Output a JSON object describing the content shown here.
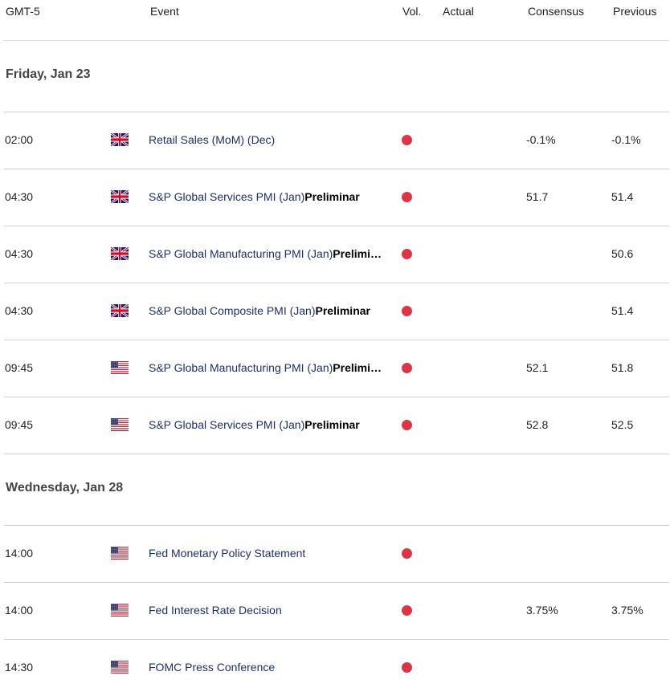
{
  "header": {
    "timezone": "GMT-5",
    "event": "Event",
    "vol": "Vol.",
    "actual": "Actual",
    "consensus": "Consensus",
    "previous": "Previous"
  },
  "colors": {
    "high_volatility": "#dc3545",
    "event_text": "#1e2f6b"
  },
  "sections": [
    {
      "date": "Friday, Jan 23",
      "rows": [
        {
          "time": "02:00",
          "flag": "uk-flag-icon",
          "event": "Retail Sales (MoM) (Dec)",
          "suffix": "",
          "actual": "",
          "consensus": "-0.1%",
          "previous": "-0.1%"
        },
        {
          "time": "04:30",
          "flag": "uk-flag-icon",
          "event": "S&P Global Services PMI (Jan)",
          "suffix": "Preliminar",
          "actual": "",
          "consensus": "51.7",
          "previous": "51.4"
        },
        {
          "time": "04:30",
          "flag": "uk-flag-icon",
          "event": "S&P Global Manufacturing PMI (Jan)",
          "suffix": "Prelimi…",
          "actual": "",
          "consensus": "",
          "previous": "50.6"
        },
        {
          "time": "04:30",
          "flag": "uk-flag-icon",
          "event": "S&P Global Composite PMI (Jan)",
          "suffix": "Preliminar",
          "actual": "",
          "consensus": "",
          "previous": "51.4"
        },
        {
          "time": "09:45",
          "flag": "us-flag-icon",
          "event": "S&P Global Manufacturing PMI (Jan)",
          "suffix": "Prelimi…",
          "actual": "",
          "consensus": "52.1",
          "previous": "51.8"
        },
        {
          "time": "09:45",
          "flag": "us-flag-icon",
          "event": "S&P Global Services PMI (Jan)",
          "suffix": "Preliminar",
          "actual": "",
          "consensus": "52.8",
          "previous": "52.5"
        }
      ]
    },
    {
      "date": "Wednesday, Jan 28",
      "rows": [
        {
          "time": "14:00",
          "flag": "us-flag-icon",
          "event": "Fed Monetary Policy Statement",
          "suffix": "",
          "actual": "",
          "consensus": "",
          "previous": ""
        },
        {
          "time": "14:00",
          "flag": "us-flag-icon",
          "event": "Fed Interest Rate Decision",
          "suffix": "",
          "actual": "",
          "consensus": "3.75%",
          "previous": "3.75%"
        },
        {
          "time": "14:30",
          "flag": "us-flag-icon",
          "event": "FOMC Press Conference",
          "suffix": "",
          "actual": "",
          "consensus": "",
          "previous": ""
        }
      ]
    }
  ]
}
